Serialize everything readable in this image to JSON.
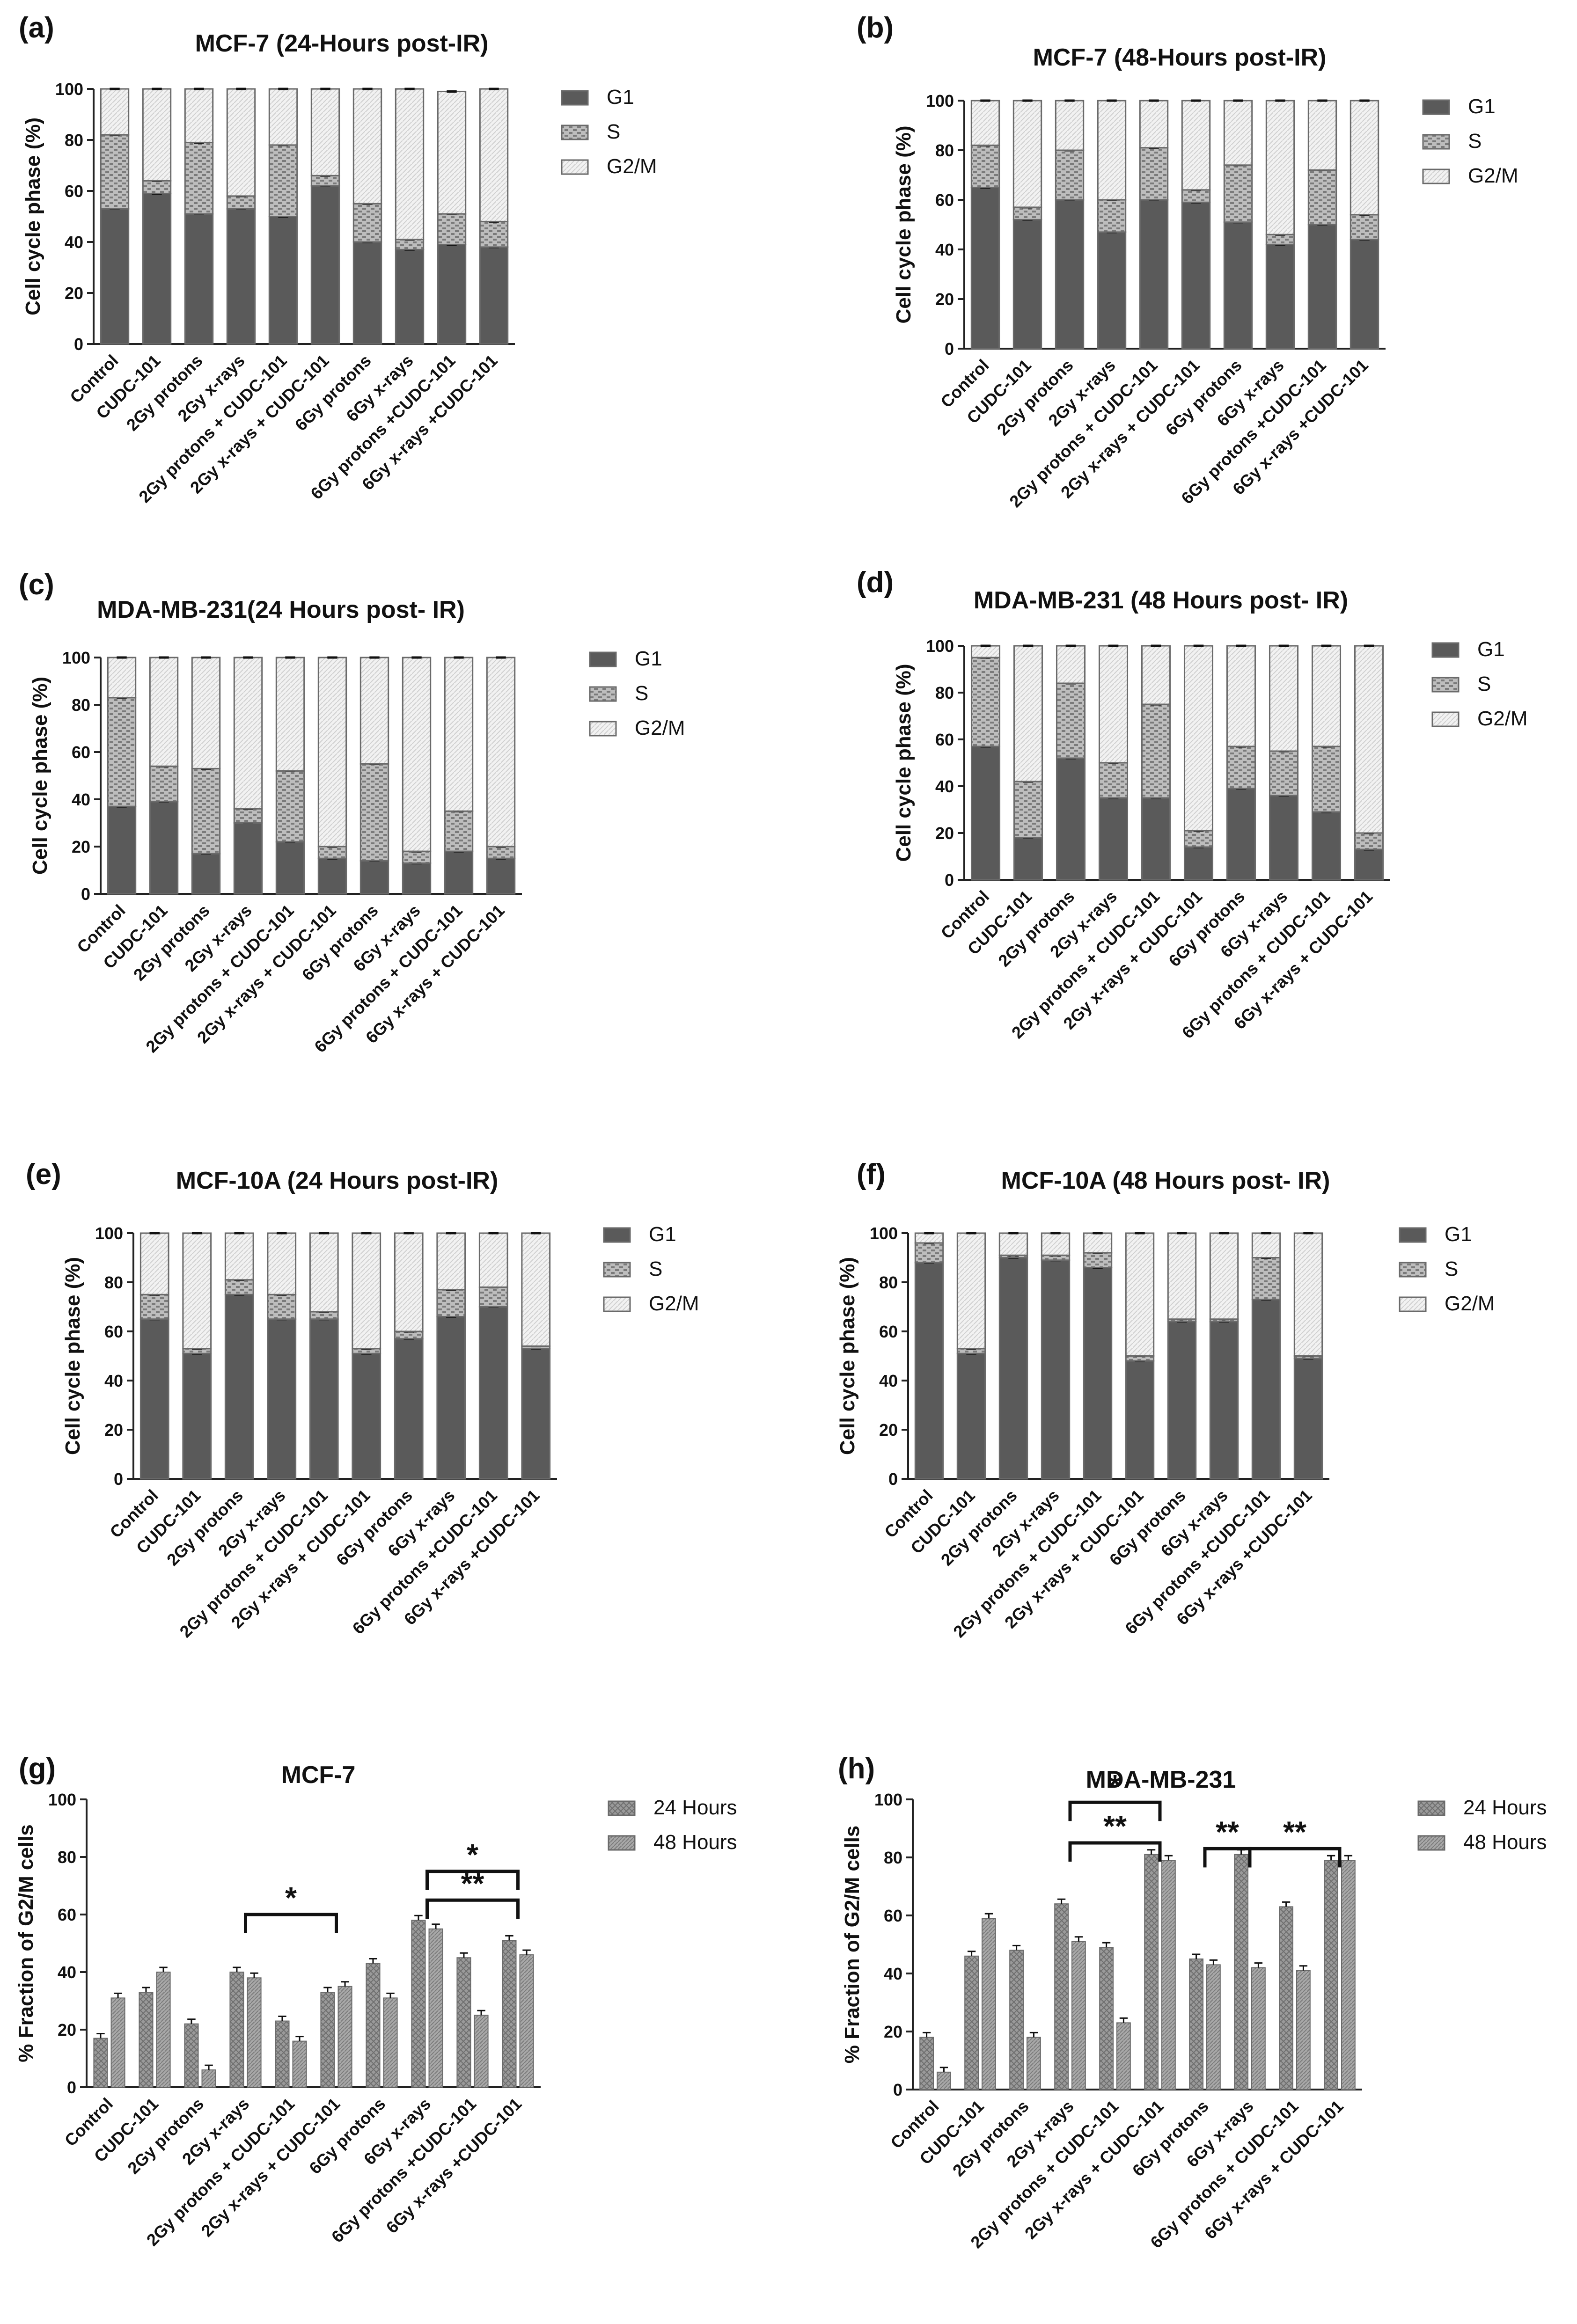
{
  "figure": {
    "legend_labels_stacked": [
      "G1",
      "S",
      "G2/M"
    ],
    "legend_labels_grouped": [
      "24 Hours",
      "48 Hours"
    ],
    "colors": {
      "g1": "#5a5a5a",
      "s": "#9a9a9a",
      "g2m": "#e8e8e8",
      "bar24": "#8c8c8c",
      "bar48": "#9e9e9e",
      "axis": "#222222"
    }
  },
  "chart_data": [
    {
      "id": "a",
      "panel_label": "(a)",
      "type": "bar",
      "stacked": true,
      "title": "MCF-7 (24-Hours post-IR)",
      "ylabel": "Cell cycle phase (%)",
      "xlabel": "",
      "ylim": [
        0,
        100
      ],
      "yticks": [
        0,
        20,
        40,
        60,
        80,
        100
      ],
      "categories": [
        "Control",
        "CUDC-101",
        "2Gy protons",
        "2Gy x-rays",
        "2Gy protons + CUDC-101",
        "2Gy x-rays + CUDC-101",
        "6Gy protons",
        "6Gy x-rays",
        "6Gy protons +CUDC-101",
        "6Gy x-rays +CUDC-101"
      ],
      "series": [
        {
          "name": "G1",
          "values": [
            53,
            59,
            51,
            53,
            50,
            62,
            40,
            37,
            39,
            38
          ]
        },
        {
          "name": "S",
          "values": [
            29,
            5,
            28,
            5,
            28,
            4,
            15,
            4,
            12,
            10
          ]
        },
        {
          "name": "G2/M",
          "values": [
            18,
            36,
            21,
            42,
            22,
            34,
            45,
            59,
            48,
            52
          ]
        }
      ],
      "legend": [
        "G1",
        "S",
        "G2/M"
      ]
    },
    {
      "id": "b",
      "panel_label": "(b)",
      "type": "bar",
      "stacked": true,
      "title": "MCF-7 (48-Hours post-IR)",
      "ylabel": "Cell cycle phase (%)",
      "xlabel": "",
      "ylim": [
        0,
        100
      ],
      "yticks": [
        0,
        20,
        40,
        60,
        80,
        100
      ],
      "categories": [
        "Control",
        "CUDC-101",
        "2Gy protons",
        "2Gy x-rays",
        "2Gy protons + CUDC-101",
        "2Gy x-rays + CUDC-101",
        "6Gy protons",
        "6Gy x-rays",
        "6Gy protons +CUDC-101",
        "6Gy x-rays +CUDC-101"
      ],
      "series": [
        {
          "name": "G1",
          "values": [
            65,
            52,
            60,
            47,
            60,
            59,
            51,
            42,
            50,
            44
          ]
        },
        {
          "name": "S",
          "values": [
            17,
            5,
            20,
            13,
            21,
            5,
            23,
            4,
            22,
            10
          ]
        },
        {
          "name": "G2/M",
          "values": [
            18,
            43,
            20,
            40,
            19,
            36,
            26,
            54,
            28,
            46
          ]
        }
      ],
      "legend": [
        "G1",
        "S",
        "G2/M"
      ]
    },
    {
      "id": "c",
      "panel_label": "(c)",
      "type": "bar",
      "stacked": true,
      "title": "MDA-MB-231(24 Hours post- IR)",
      "ylabel": "Cell cycle phase (%)",
      "xlabel": "",
      "ylim": [
        0,
        100
      ],
      "yticks": [
        0,
        20,
        40,
        60,
        80,
        100
      ],
      "categories": [
        "Control",
        "CUDC-101",
        "2Gy protons",
        "2Gy x-rays",
        "2Gy protons + CUDC-101",
        "2Gy x-rays + CUDC-101",
        "6Gy protons",
        "6Gy x-rays",
        "6Gy protons + CUDC-101",
        "6Gy x-rays + CUDC-101"
      ],
      "series": [
        {
          "name": "G1",
          "values": [
            37,
            39,
            17,
            30,
            22,
            15,
            14,
            13,
            18,
            15
          ]
        },
        {
          "name": "S",
          "values": [
            46,
            15,
            36,
            6,
            30,
            5,
            41,
            5,
            17,
            5
          ]
        },
        {
          "name": "G2/M",
          "values": [
            17,
            46,
            47,
            64,
            48,
            80,
            45,
            82,
            65,
            80
          ]
        }
      ],
      "legend": [
        "G1",
        "S",
        "G2/M"
      ]
    },
    {
      "id": "d",
      "panel_label": "(d)",
      "type": "bar",
      "stacked": true,
      "title": "MDA-MB-231 (48 Hours post- IR)",
      "ylabel": "Cell cycle phase (%)",
      "xlabel": "",
      "ylim": [
        0,
        100
      ],
      "yticks": [
        0,
        20,
        40,
        60,
        80,
        100
      ],
      "categories": [
        "Control",
        "CUDC-101",
        "2Gy protons",
        "2Gy x-rays",
        "2Gy protons + CUDC-101",
        "2Gy x-rays + CUDC-101",
        "6Gy protons",
        "6Gy x-rays",
        "6Gy protons + CUDC-101",
        "6Gy x-rays + CUDC-101"
      ],
      "series": [
        {
          "name": "G1",
          "values": [
            57,
            18,
            52,
            35,
            35,
            14,
            39,
            36,
            29,
            13
          ]
        },
        {
          "name": "S",
          "values": [
            38,
            24,
            32,
            15,
            40,
            7,
            18,
            19,
            28,
            7
          ]
        },
        {
          "name": "G2/M",
          "values": [
            5,
            58,
            16,
            50,
            25,
            79,
            43,
            45,
            43,
            80
          ]
        }
      ],
      "legend": [
        "G1",
        "S",
        "G2/M"
      ]
    },
    {
      "id": "e",
      "panel_label": "(e)",
      "type": "bar",
      "stacked": true,
      "title": "MCF-10A (24 Hours post-IR)",
      "ylabel": "Cell cycle phase (%)",
      "xlabel": "",
      "ylim": [
        0,
        100
      ],
      "yticks": [
        0,
        20,
        40,
        60,
        80,
        100
      ],
      "categories": [
        "Control",
        "CUDC-101",
        "2Gy protons",
        "2Gy x-rays",
        "2Gy protons + CUDC-101",
        "2Gy x-rays + CUDC-101",
        "6Gy protons",
        "6Gy x-rays",
        "6Gy protons +CUDC-101",
        "6Gy x-rays +CUDC-101"
      ],
      "series": [
        {
          "name": "G1",
          "values": [
            65,
            51,
            75,
            65,
            65,
            51,
            57,
            66,
            70,
            53
          ]
        },
        {
          "name": "S",
          "values": [
            10,
            2,
            6,
            10,
            3,
            2,
            3,
            11,
            8,
            1
          ]
        },
        {
          "name": "G2/M",
          "values": [
            25,
            47,
            19,
            25,
            32,
            47,
            40,
            23,
            22,
            46
          ]
        }
      ],
      "legend": [
        "G1",
        "S",
        "G2/M"
      ]
    },
    {
      "id": "f",
      "panel_label": "(f)",
      "type": "bar",
      "stacked": true,
      "title": "MCF-10A (48 Hours post- IR)",
      "ylabel": "Cell cycle phase (%)",
      "xlabel": "",
      "ylim": [
        0,
        100
      ],
      "yticks": [
        0,
        20,
        40,
        60,
        80,
        100
      ],
      "categories": [
        "Control",
        "CUDC-101",
        "2Gy protons",
        "2Gy x-rays",
        "2Gy protons + CUDC-101",
        "2Gy x-rays + CUDC-101",
        "6Gy protons",
        "6Gy x-rays",
        "6Gy protons +CUDC-101",
        "6Gy x-rays +CUDC-101"
      ],
      "series": [
        {
          "name": "G1",
          "values": [
            88,
            51,
            90,
            89,
            86,
            48,
            64,
            64,
            73,
            49
          ]
        },
        {
          "name": "S",
          "values": [
            8,
            2,
            1,
            2,
            6,
            2,
            1,
            1,
            17,
            1
          ]
        },
        {
          "name": "G2/M",
          "values": [
            4,
            47,
            9,
            9,
            8,
            50,
            35,
            35,
            10,
            50
          ]
        }
      ],
      "legend": [
        "G1",
        "S",
        "G2/M"
      ]
    },
    {
      "id": "g",
      "panel_label": "(g)",
      "type": "bar",
      "stacked": false,
      "title": "MCF-7",
      "ylabel": "% Fraction of G2/M cells",
      "xlabel": "",
      "ylim": [
        0,
        100
      ],
      "yticks": [
        0,
        20,
        40,
        60,
        80,
        100
      ],
      "categories": [
        "Control",
        "CUDC-101",
        "2Gy protons",
        "2Gy x-rays",
        "2Gy protons + CUDC-101",
        "2Gy x-rays + CUDC-101",
        "6Gy protons",
        "6Gy x-rays",
        "6Gy protons +CUDC-101",
        "6Gy x-rays +CUDC-101"
      ],
      "series": [
        {
          "name": "24 Hours",
          "values": [
            17,
            33,
            22,
            40,
            23,
            33,
            43,
            58,
            45,
            51
          ]
        },
        {
          "name": "48 Hours",
          "values": [
            31,
            40,
            6,
            38,
            16,
            35,
            31,
            55,
            25,
            46
          ]
        }
      ],
      "legend": [
        "24 Hours",
        "48 Hours"
      ],
      "annotations": [
        {
          "text": "*",
          "from": 3,
          "to": 5,
          "y": 60
        },
        {
          "text": "*",
          "from": 7,
          "to": 9,
          "y": 75
        },
        {
          "text": "**",
          "from": 7,
          "to": 9,
          "y": 65
        }
      ]
    },
    {
      "id": "h",
      "panel_label": "(h)",
      "type": "bar",
      "stacked": false,
      "title": "MDA-MB-231",
      "ylabel": "% Fraction of G2/M cells",
      "xlabel": "",
      "ylim": [
        0,
        100
      ],
      "yticks": [
        0,
        20,
        40,
        60,
        80,
        100
      ],
      "categories": [
        "Control",
        "CUDC-101",
        "2Gy protons",
        "2Gy x-rays",
        "2Gy protons + CUDC-101",
        "2Gy x-rays + CUDC-101",
        "6Gy protons",
        "6Gy x-rays",
        "6Gy protons + CUDC-101",
        "6Gy x-rays + CUDC-101"
      ],
      "series": [
        {
          "name": "24 Hours",
          "values": [
            18,
            46,
            48,
            64,
            49,
            81,
            45,
            81,
            63,
            79
          ]
        },
        {
          "name": "48 Hours",
          "values": [
            6,
            59,
            18,
            51,
            23,
            79,
            43,
            42,
            41,
            79
          ]
        }
      ],
      "legend": [
        "24 Hours",
        "48 Hours"
      ],
      "annotations": [
        {
          "text": "*",
          "from": 3,
          "to": 5,
          "y": 99
        },
        {
          "text": "**",
          "from": 3,
          "to": 5,
          "y": 85
        },
        {
          "text": "**",
          "from": 6,
          "to": 7,
          "y": 83
        },
        {
          "text": "**",
          "from": 7,
          "to": 9,
          "y": 83
        }
      ]
    }
  ]
}
